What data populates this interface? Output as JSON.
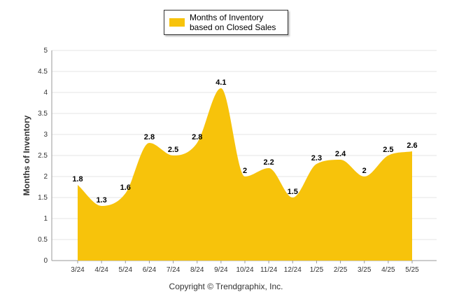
{
  "chart_data": {
    "type": "area",
    "categories": [
      "3/24",
      "4/24",
      "5/24",
      "6/24",
      "7/24",
      "8/24",
      "9/24",
      "10/24",
      "11/24",
      "12/24",
      "1/25",
      "2/25",
      "3/25",
      "4/25",
      "5/25"
    ],
    "series": [
      {
        "name": "Months of Inventory based on Closed Sales",
        "values": [
          1.8,
          1.3,
          1.6,
          2.8,
          2.5,
          2.8,
          4.1,
          2,
          2.2,
          1.5,
          2.3,
          2.4,
          2,
          2.5,
          2.6
        ],
        "color": "#f7c30b"
      }
    ],
    "ylabel": "Months of Inventory",
    "xlabel": "",
    "ylim": [
      0,
      5
    ],
    "yticks": [
      "0",
      "0.5",
      "1",
      "1.5",
      "2",
      "2.5",
      "3",
      "3.5",
      "4",
      "4.5",
      "5"
    ],
    "grid": true,
    "legend_placement": "top-center"
  },
  "legend": {
    "label": "Months of Inventory based on Closed Sales",
    "color": "#f7c30b"
  },
  "footer": {
    "copyright": "Copyright © Trendgraphix, Inc."
  }
}
